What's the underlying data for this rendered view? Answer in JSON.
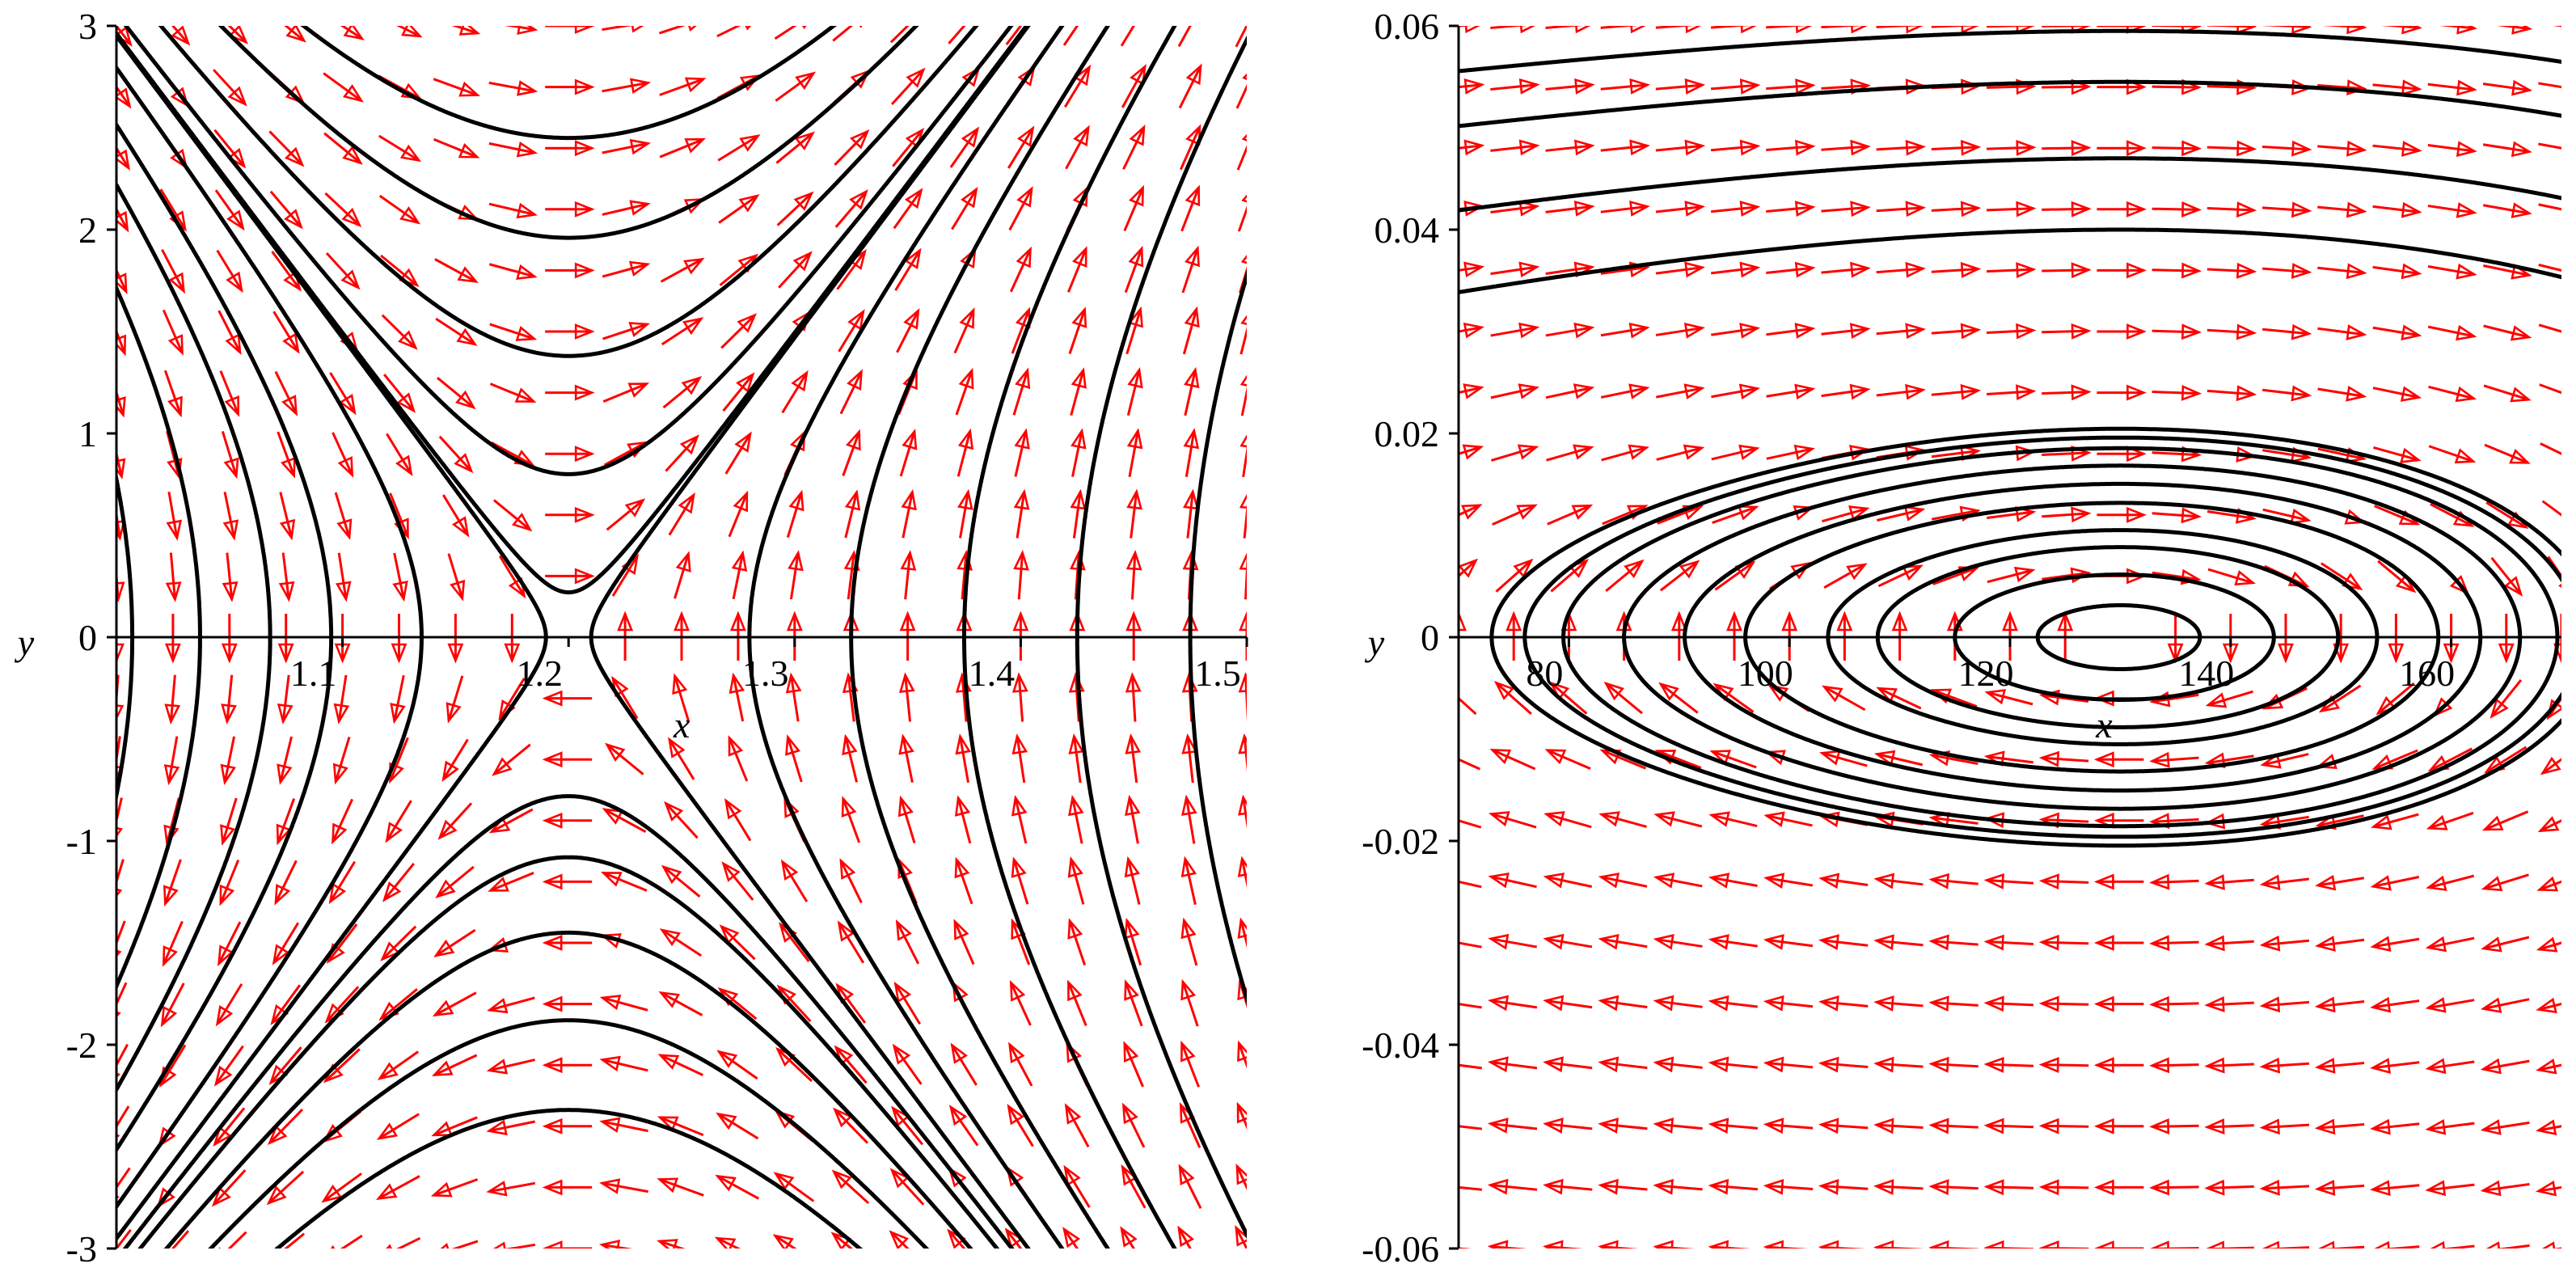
{
  "colors": {
    "background": "#ffffff",
    "trajectory": "#000000",
    "arrow": "#ff0000",
    "axis": "#000000"
  },
  "chart_data": [
    {
      "type": "phase-portrait",
      "title": "",
      "xlabel": "x",
      "ylabel": "y",
      "xlim": [
        1.0,
        1.5
      ],
      "ylim": [
        -3,
        3
      ],
      "x_ticks": [
        1.1,
        1.2,
        1.3,
        1.4,
        1.5
      ],
      "x_tick_labels": [
        "1.1",
        "1.2",
        "1.3",
        "1.4",
        "1.5"
      ],
      "y_ticks": [
        -3,
        -2,
        -1,
        0,
        1,
        2,
        3
      ],
      "y_tick_labels": [
        "-3",
        "-2",
        "-1",
        "0",
        "1",
        "2",
        "3"
      ],
      "equilibrium": {
        "x": 1.2,
        "y": 0,
        "kind": "saddle"
      },
      "field": {
        "x_samples": [
          1.0,
          1.025,
          1.05,
          1.075,
          1.1,
          1.125,
          1.15,
          1.175,
          1.2,
          1.225,
          1.25,
          1.275,
          1.3,
          1.325,
          1.35,
          1.375,
          1.4,
          1.425,
          1.45,
          1.475,
          1.5
        ],
        "y_samples": [
          -3,
          -2.7,
          -2.4,
          -2.1,
          -1.8,
          -1.5,
          -1.2,
          -0.9,
          -0.6,
          -0.3,
          0,
          0.3,
          0.6,
          0.9,
          1.2,
          1.5,
          1.8,
          2.1,
          2.4,
          2.7,
          3
        ]
      },
      "trajectories": {
        "vertical_crossings_x": [
          1.007,
          1.037,
          1.068,
          1.095,
          1.135,
          1.19,
          1.21,
          1.28,
          1.325,
          1.375,
          1.425,
          1.475
        ],
        "upper_vertices_y": [
          0.22,
          0.8,
          1.38,
          1.96,
          2.45
        ],
        "lower_vertices_y": [
          -0.78,
          -1.08,
          -1.45,
          -1.88,
          -2.32
        ]
      }
    },
    {
      "type": "phase-portrait",
      "title": "",
      "xlabel": "x",
      "ylabel": "y",
      "xlim": [
        70,
        170
      ],
      "ylim": [
        -0.06,
        0.06
      ],
      "x_ticks": [
        80,
        100,
        120,
        140,
        160
      ],
      "x_tick_labels": [
        "80",
        "100",
        "120",
        "140",
        "160"
      ],
      "y_ticks": [
        -0.06,
        -0.04,
        -0.02,
        0,
        0.02,
        0.04,
        0.06
      ],
      "y_tick_labels": [
        "-0.06",
        "-0.04",
        "-0.02",
        "0",
        "0.02",
        "0.04",
        "0.06"
      ],
      "equilibrium": {
        "x": 130,
        "y": 0,
        "kind": "center"
      },
      "field": {
        "x_samples": [
          70,
          75,
          80,
          85,
          90,
          95,
          100,
          105,
          110,
          115,
          120,
          125,
          130,
          135,
          140,
          145,
          150,
          155,
          160,
          165,
          170
        ],
        "y_samples": [
          -0.06,
          -0.054,
          -0.048,
          -0.042,
          -0.036,
          -0.03,
          -0.024,
          -0.018,
          -0.012,
          -0.006,
          0,
          0.006,
          0.012,
          0.018,
          0.024,
          0.03,
          0.036,
          0.042,
          0.048,
          0.054,
          0.06
        ]
      },
      "trajectories": {
        "closed_orbits_left_x": [
          122.5,
          115,
          108,
          103.5
        ],
        "open_orbits_left_x": [
          96,
          90.5,
          85,
          79.5,
          76,
          73
        ],
        "open_orbits_top_y": [
          0.0595,
          0.0545,
          0.047,
          0.04
        ]
      }
    }
  ]
}
